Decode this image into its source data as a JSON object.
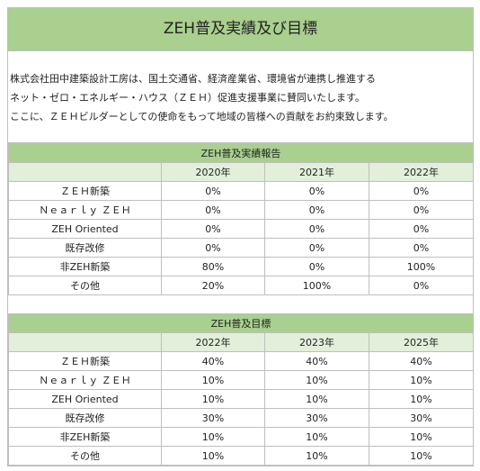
{
  "header": {
    "title": "ZEH普及実績及び目標"
  },
  "intro": {
    "lines": [
      "株式会社田中建築設計工房は、国土交通省、経済産業省、環境省が連携し推進する",
      "ネット・ゼロ・エネルギー・ハウス（ＺＥＨ）促進支援事業に賛同いたします。",
      "ここに、ＺＥＨビルダーとしての使命をもって地域の皆様への貢献をお約束致します。"
    ]
  },
  "sections": [
    {
      "title": "ZEH普及実績報告",
      "columns": [
        "2020年",
        "2021年",
        "2022年"
      ],
      "rows": [
        [
          "ＺＥＨ新築",
          "0%",
          "0%",
          "0%"
        ],
        [
          "Ｎｅａｒｌｙ ＺＥＨ",
          "0%",
          "0%",
          "0%"
        ],
        [
          "ZEH Oriented",
          "0%",
          "0%",
          "0%"
        ],
        [
          "既存改修",
          "0%",
          "0%",
          "0%"
        ],
        [
          "非ZEH新築",
          "80%",
          "0%",
          "100%"
        ],
        [
          "その他",
          "20%",
          "100%",
          "0%"
        ]
      ]
    },
    {
      "title": "ZEH普及目標",
      "columns": [
        "2022年",
        "2023年",
        "2025年"
      ],
      "rows": [
        [
          "ＺＥＨ新築",
          "40%",
          "40%",
          "40%"
        ],
        [
          "Ｎｅａｒｌｙ ＺＥＨ",
          "10%",
          "10%",
          "10%"
        ],
        [
          "ZEH Oriented",
          "10%",
          "10%",
          "10%"
        ],
        [
          "既存改修",
          "30%",
          "30%",
          "30%"
        ],
        [
          "非ZEH新築",
          "10%",
          "10%",
          "10%"
        ],
        [
          "その他",
          "10%",
          "10%",
          "10%"
        ]
      ]
    }
  ]
}
